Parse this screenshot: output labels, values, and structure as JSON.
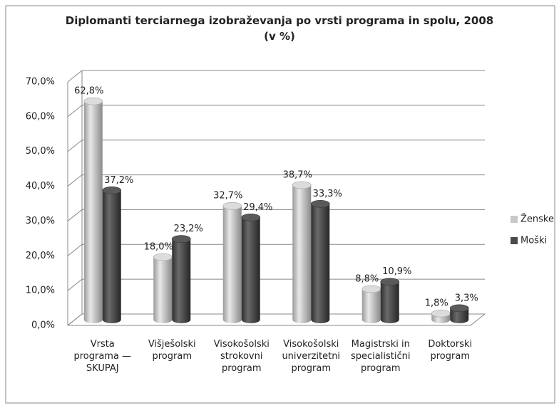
{
  "chart_data": {
    "type": "bar",
    "title": "Diplomanti terciarnega izobraževanja po vrsti programa in spolu, 2008 (v %)",
    "categories": [
      "Vrsta programa — SKUPAJ",
      "Višješolski program",
      "Visokošolski strokovni program",
      "Visokošolski univerzitetni program",
      "Magistrski in specialistični program",
      "Doktorski program"
    ],
    "series": [
      {
        "name": "Ženske",
        "color": "#c8c8c8",
        "values": [
          62.8,
          18.0,
          32.7,
          38.7,
          8.8,
          1.8
        ],
        "value_labels": [
          "62,8%",
          "18,0%",
          "32,7%",
          "38,7%",
          "8,8%",
          "1,8%"
        ]
      },
      {
        "name": "Moški",
        "color": "#4a4a4a",
        "values": [
          37.2,
          23.2,
          29.4,
          33.3,
          10.9,
          3.3
        ],
        "value_labels": [
          "37,2%",
          "23,2%",
          "29,4%",
          "33,3%",
          "10,9%",
          "3,3%"
        ]
      }
    ],
    "ylim": [
      0,
      70
    ],
    "yticks": [
      {
        "value": 0,
        "label": "0,0%"
      },
      {
        "value": 10,
        "label": "10,0%"
      },
      {
        "value": 20,
        "label": "20,0%"
      },
      {
        "value": 30,
        "label": "30,0%"
      },
      {
        "value": 40,
        "label": "40,0%"
      },
      {
        "value": 50,
        "label": "50,0%"
      },
      {
        "value": 60,
        "label": "60,0%"
      },
      {
        "value": 70,
        "label": "70,0%"
      }
    ],
    "grid": true,
    "legend": "right"
  }
}
